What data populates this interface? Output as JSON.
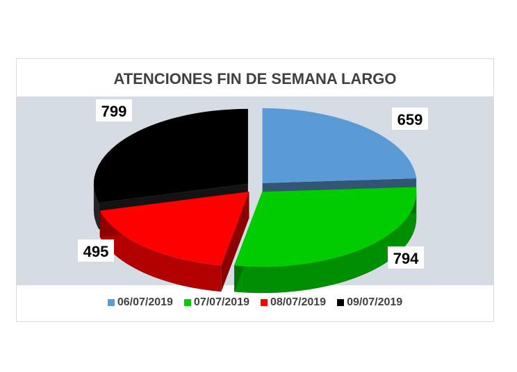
{
  "chart_data": {
    "type": "pie",
    "title": "ATENCIONES FIN DE SEMANA LARGO",
    "categories": [
      "06/07/2019",
      "07/07/2019",
      "08/07/2019",
      "09/07/2019"
    ],
    "values": [
      659,
      794,
      495,
      799
    ],
    "colors": [
      "#5b9bd5",
      "#00cc00",
      "#ff0000",
      "#000000"
    ],
    "data_labels": [
      "659",
      "794",
      "495",
      "799"
    ],
    "legend_position": "bottom",
    "style": "3d-exploded"
  }
}
